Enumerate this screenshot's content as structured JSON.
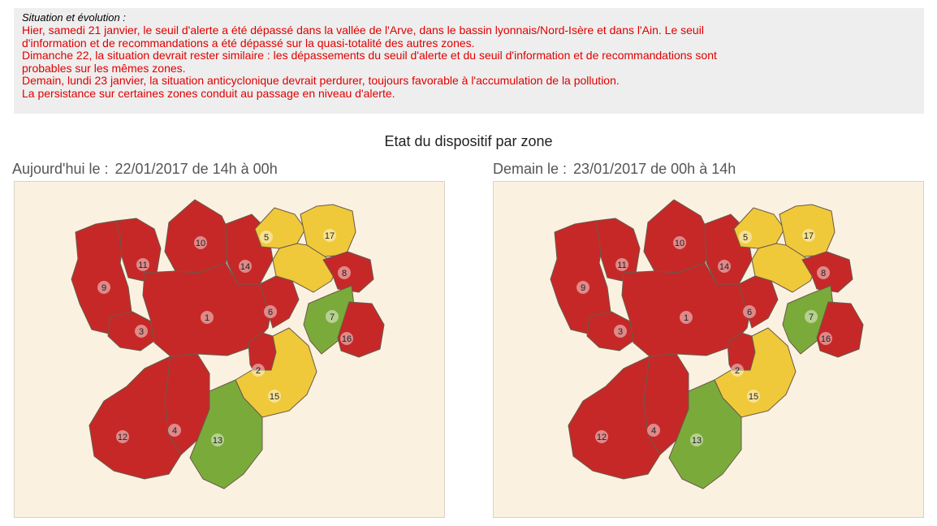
{
  "situation": {
    "heading": "Situation et évolution :",
    "lines": [
      "Hier, samedi 21 janvier, le seuil d'alerte a été dépassé dans la vallée de l'Arve, dans le bassin lyonnais/Nord-Isère et dans l'Ain. Le seuil",
      "d'information et de recommandations a été dépassé sur la quasi-totalité des autres zones.",
      "Dimanche 22, la situation devrait rester similaire : les dépassements du seuil d'alerte et du seuil d'information et de recommandations sont",
      "probables sur les mêmes zones.",
      "Demain, lundi 23 janvier, la situation anticyclonique devrait perdurer, toujours favorable à l'accumulation de la pollution.",
      "La persistance sur certaines zones conduit au passage en niveau d'alerte."
    ]
  },
  "section_title": "Etat du dispositif par zone",
  "colors": {
    "alert": "#c62828",
    "information": "#f0c93a",
    "none": "#7aab3a"
  },
  "panels": [
    {
      "label": "Aujourd'hui le :",
      "date": "22/01/2017 de 14h à 00h",
      "zones": [
        {
          "num": "1",
          "level": "alert"
        },
        {
          "num": "2",
          "level": "alert"
        },
        {
          "num": "3",
          "level": "alert"
        },
        {
          "num": "4",
          "level": "alert"
        },
        {
          "num": "5",
          "level": "information"
        },
        {
          "num": "6",
          "level": "alert"
        },
        {
          "num": "7",
          "level": "none"
        },
        {
          "num": "8",
          "level": "alert"
        },
        {
          "num": "9",
          "level": "alert"
        },
        {
          "num": "10",
          "level": "alert"
        },
        {
          "num": "11",
          "level": "alert"
        },
        {
          "num": "12",
          "level": "alert"
        },
        {
          "num": "13",
          "level": "none"
        },
        {
          "num": "14",
          "level": "alert"
        },
        {
          "num": "15",
          "level": "information"
        },
        {
          "num": "16",
          "level": "alert"
        },
        {
          "num": "17",
          "level": "information"
        }
      ]
    },
    {
      "label": "Demain le :",
      "date": "23/01/2017 de 00h à 14h",
      "zones": [
        {
          "num": "1",
          "level": "alert"
        },
        {
          "num": "2",
          "level": "alert"
        },
        {
          "num": "3",
          "level": "alert"
        },
        {
          "num": "4",
          "level": "alert"
        },
        {
          "num": "5",
          "level": "information"
        },
        {
          "num": "6",
          "level": "alert"
        },
        {
          "num": "7",
          "level": "none"
        },
        {
          "num": "8",
          "level": "alert"
        },
        {
          "num": "9",
          "level": "alert"
        },
        {
          "num": "10",
          "level": "alert"
        },
        {
          "num": "11",
          "level": "alert"
        },
        {
          "num": "12",
          "level": "alert"
        },
        {
          "num": "13",
          "level": "none"
        },
        {
          "num": "14",
          "level": "alert"
        },
        {
          "num": "15",
          "level": "information"
        },
        {
          "num": "16",
          "level": "alert"
        },
        {
          "num": "17",
          "level": "information"
        }
      ]
    }
  ]
}
